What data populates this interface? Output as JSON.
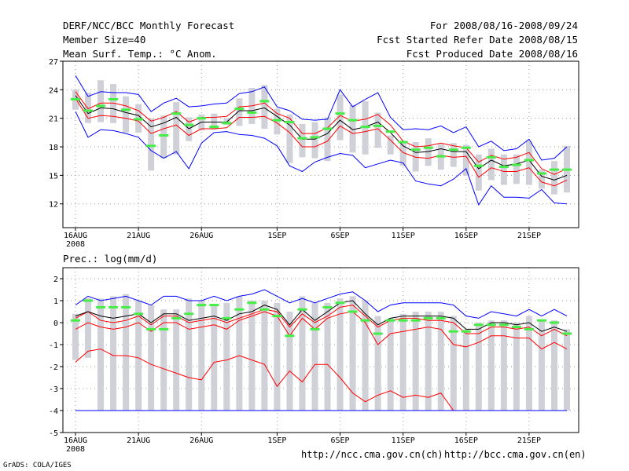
{
  "header": {
    "title": "DERF/NCC/BCC Monthly Forecast",
    "member_size": "Member Size=40",
    "variable": "Mean Surf. Temp.: °C Anom.",
    "period": "For 2008/08/16-2008/09/24",
    "started": "Fcst Started Refer Date 2008/08/15",
    "produced": "Fcst Produced Date 2008/08/16"
  },
  "footer": {
    "grads": "GrADS: COLA/IGES",
    "url_ncc": "http://ncc.cma.gov.cn(ch)",
    "url_bcc": "http://bcc.cma.gov.cn(en)"
  },
  "colors": {
    "mean": "#000000",
    "spread": "#ff0000",
    "envelope": "#0000ff",
    "box": "#d0d0d8",
    "marker": "#44ee44",
    "grid": "#9a9a9a"
  },
  "chart_data": [
    {
      "type": "line",
      "title": "Mean Surf. Temp.: °C Anom.",
      "xlabel": "",
      "ylabel": "°C",
      "ylim": [
        9.5,
        27
      ],
      "yticks": [
        12,
        15,
        18,
        21,
        24,
        27
      ],
      "x": [
        1,
        2,
        3,
        4,
        5,
        6,
        7,
        8,
        9,
        10,
        11,
        12,
        13,
        14,
        15,
        16,
        17,
        18,
        19,
        20,
        21,
        22,
        23,
        24,
        25,
        26,
        27,
        28,
        29,
        30,
        31,
        32,
        33,
        34,
        35,
        36,
        37,
        38,
        39,
        40
      ],
      "xticks": [
        {
          "day": 1,
          "label": "16AUG",
          "sub": "2008"
        },
        {
          "day": 6,
          "label": "21AUG",
          "sub": ""
        },
        {
          "day": 11,
          "label": "26AUG",
          "sub": ""
        },
        {
          "day": 17,
          "label": "1SEP",
          "sub": ""
        },
        {
          "day": 22,
          "label": "6SEP",
          "sub": ""
        },
        {
          "day": 27,
          "label": "11SEP",
          "sub": ""
        },
        {
          "day": 32,
          "label": "16SEP",
          "sub": ""
        },
        {
          "day": 37,
          "label": "21SEP",
          "sub": ""
        }
      ],
      "series": [
        {
          "name": "Ensemble max",
          "role": "envelope",
          "values": [
            25.5,
            23.3,
            23.8,
            23.7,
            23.7,
            23.5,
            21.7,
            22.6,
            23.1,
            22.2,
            22.3,
            22.5,
            22.6,
            23.6,
            23.8,
            24.3,
            22.2,
            21.8,
            20.9,
            20.8,
            20.9,
            24.0,
            22.2,
            23.0,
            23.7,
            21.1,
            19.8,
            19.9,
            19.8,
            20.2,
            19.5,
            20.1,
            18.0,
            18.6,
            17.6,
            17.8,
            18.8,
            16.6,
            16.8,
            18.0
          ]
        },
        {
          "name": "Upper spread",
          "role": "spread",
          "values": [
            23.8,
            22.0,
            22.6,
            22.6,
            22.3,
            21.8,
            20.7,
            21.1,
            21.7,
            20.6,
            21.1,
            21.1,
            21.2,
            22.2,
            22.3,
            22.6,
            21.5,
            21.0,
            19.4,
            19.4,
            20.0,
            21.3,
            20.7,
            20.9,
            21.4,
            20.3,
            18.6,
            18.0,
            18.1,
            18.4,
            18.1,
            17.9,
            16.4,
            17.1,
            16.7,
            16.9,
            17.4,
            15.7,
            15.1,
            15.7
          ]
        },
        {
          "name": "Ensemble mean",
          "role": "mean",
          "values": [
            23.4,
            21.5,
            22.1,
            22.0,
            21.6,
            21.3,
            20.1,
            20.5,
            21.1,
            19.9,
            20.6,
            20.6,
            20.6,
            21.8,
            21.8,
            22.1,
            21.2,
            20.3,
            18.8,
            18.8,
            19.4,
            20.8,
            19.8,
            20.1,
            20.6,
            19.5,
            18.1,
            17.4,
            17.5,
            17.8,
            17.5,
            17.5,
            15.7,
            16.6,
            16.0,
            16.2,
            16.6,
            14.9,
            14.5,
            15.0
          ]
        },
        {
          "name": "Lower spread",
          "role": "spread",
          "values": [
            23.1,
            21.0,
            21.3,
            21.2,
            21.0,
            20.7,
            19.4,
            19.9,
            20.3,
            19.2,
            19.9,
            19.9,
            20.0,
            21.1,
            21.1,
            21.2,
            20.5,
            19.5,
            18.0,
            18.0,
            18.6,
            20.2,
            19.4,
            19.6,
            19.9,
            18.7,
            17.4,
            16.9,
            16.8,
            17.1,
            16.9,
            17.0,
            14.8,
            15.8,
            15.4,
            15.4,
            15.8,
            14.3,
            13.9,
            14.5
          ]
        },
        {
          "name": "Ensemble min",
          "role": "envelope",
          "values": [
            21.7,
            19.0,
            19.8,
            19.7,
            19.4,
            19.0,
            17.6,
            16.8,
            17.5,
            15.7,
            18.4,
            19.5,
            19.6,
            19.3,
            19.2,
            18.9,
            18.1,
            16.0,
            15.4,
            16.4,
            16.9,
            17.3,
            17.1,
            15.8,
            16.2,
            16.6,
            16.3,
            14.4,
            14.1,
            13.9,
            14.6,
            15.7,
            11.9,
            13.9,
            12.7,
            12.7,
            12.6,
            13.5,
            12.1,
            12.0
          ]
        }
      ],
      "boxes": [
        {
          "lo": 21.9,
          "hi": 24.0
        },
        {
          "lo": 20.5,
          "hi": 23.7
        },
        {
          "lo": 20.6,
          "hi": 25.0
        },
        {
          "lo": 20.5,
          "hi": 24.6
        },
        {
          "lo": 19.5,
          "hi": 23.3
        },
        {
          "lo": 19.5,
          "hi": 22.5
        },
        {
          "lo": 15.5,
          "hi": 21.0
        },
        {
          "lo": 16.8,
          "hi": 21.3
        },
        {
          "lo": 17.2,
          "hi": 22.7
        },
        {
          "lo": 18.6,
          "hi": 21.1
        },
        {
          "lo": 19.7,
          "hi": 21.4
        },
        {
          "lo": 19.8,
          "hi": 21.5
        },
        {
          "lo": 20.3,
          "hi": 21.0
        },
        {
          "lo": 20.2,
          "hi": 23.1
        },
        {
          "lo": 20.4,
          "hi": 24.2
        },
        {
          "lo": 19.9,
          "hi": 24.5
        },
        {
          "lo": 19.3,
          "hi": 22.0
        },
        {
          "lo": 16.3,
          "hi": 21.4
        },
        {
          "lo": 16.9,
          "hi": 20.4
        },
        {
          "lo": 16.8,
          "hi": 20.6
        },
        {
          "lo": 16.5,
          "hi": 21.1
        },
        {
          "lo": 18.7,
          "hi": 23.5
        },
        {
          "lo": 17.4,
          "hi": 22.4
        },
        {
          "lo": 17.2,
          "hi": 22.8
        },
        {
          "lo": 17.9,
          "hi": 21.6
        },
        {
          "lo": 17.2,
          "hi": 19.2
        },
        {
          "lo": 16.0,
          "hi": 18.6
        },
        {
          "lo": 15.4,
          "hi": 18.5
        },
        {
          "lo": 16.0,
          "hi": 18.9
        },
        {
          "lo": 15.6,
          "hi": 18.3
        },
        {
          "lo": 15.9,
          "hi": 18.4
        },
        {
          "lo": 15.0,
          "hi": 18.2
        },
        {
          "lo": 13.4,
          "hi": 17.2
        },
        {
          "lo": 14.5,
          "hi": 17.8
        },
        {
          "lo": 14.0,
          "hi": 17.2
        },
        {
          "lo": 14.1,
          "hi": 17.2
        },
        {
          "lo": 14.0,
          "hi": 18.6
        },
        {
          "lo": 13.6,
          "hi": 15.6
        },
        {
          "lo": 13.0,
          "hi": 16.5
        },
        {
          "lo": 13.2,
          "hi": 18.1
        }
      ],
      "markers": [
        23.0,
        21.8,
        22.3,
        23.0,
        21.9,
        20.9,
        18.1,
        19.2,
        21.5,
        20.3,
        21.0,
        20.1,
        20.5,
        22.0,
        21.6,
        22.8,
        20.8,
        20.6,
        18.9,
        19.0,
        19.9,
        21.5,
        20.8,
        20.1,
        20.2,
        19.6,
        18.5,
        17.7,
        17.9,
        17.0,
        17.7,
        17.9,
        16.0,
        16.9,
        15.9,
        16.1,
        16.6,
        15.2,
        15.6,
        15.6
      ]
    },
    {
      "type": "line",
      "title": "Prec.: log(mm/d)",
      "xlabel": "",
      "ylabel": "log(mm/d)",
      "ylim": [
        -5,
        2.5
      ],
      "yticks": [
        -5,
        -4,
        -3,
        -2,
        -1,
        0,
        1,
        2
      ],
      "x": [
        1,
        2,
        3,
        4,
        5,
        6,
        7,
        8,
        9,
        10,
        11,
        12,
        13,
        14,
        15,
        16,
        17,
        18,
        19,
        20,
        21,
        22,
        23,
        24,
        25,
        26,
        27,
        28,
        29,
        30,
        31,
        32,
        33,
        34,
        35,
        36,
        37,
        38,
        39,
        40
      ],
      "xticks": [
        {
          "day": 1,
          "label": "16AUG",
          "sub": "2008"
        },
        {
          "day": 6,
          "label": "21AUG",
          "sub": ""
        },
        {
          "day": 11,
          "label": "26AUG",
          "sub": ""
        },
        {
          "day": 17,
          "label": "1SEP",
          "sub": ""
        },
        {
          "day": 22,
          "label": "6SEP",
          "sub": ""
        },
        {
          "day": 27,
          "label": "11SEP",
          "sub": ""
        },
        {
          "day": 32,
          "label": "16SEP",
          "sub": ""
        },
        {
          "day": 37,
          "label": "21SEP",
          "sub": ""
        }
      ],
      "series": [
        {
          "name": "Ensemble max",
          "role": "envelope",
          "values": [
            0.8,
            1.2,
            1.0,
            1.1,
            1.2,
            1.0,
            0.8,
            1.2,
            1.2,
            1.0,
            1.0,
            1.2,
            1.0,
            1.2,
            1.3,
            1.5,
            1.2,
            0.9,
            1.1,
            0.9,
            1.1,
            1.3,
            1.4,
            1.0,
            0.5,
            0.8,
            0.9,
            0.9,
            0.9,
            0.9,
            0.8,
            0.3,
            0.2,
            0.5,
            0.4,
            0.3,
            0.6,
            0.3,
            0.6,
            0.3
          ]
        },
        {
          "name": "Upper spread",
          "role": "spread",
          "values": [
            0.2,
            0.5,
            0.1,
            0.0,
            0.1,
            0.3,
            -0.1,
            0.3,
            0.3,
            0.0,
            0.1,
            0.2,
            0.0,
            0.2,
            0.4,
            0.6,
            0.5,
            -0.2,
            0.4,
            0.0,
            0.3,
            0.7,
            0.8,
            0.3,
            -0.2,
            0.1,
            0.2,
            0.2,
            0.1,
            0.1,
            0.0,
            -0.5,
            -0.5,
            -0.2,
            -0.2,
            -0.3,
            -0.2,
            -0.6,
            -0.3,
            -0.6
          ]
        },
        {
          "name": "Ensemble mean",
          "role": "mean",
          "values": [
            0.3,
            0.5,
            0.3,
            0.2,
            0.3,
            0.4,
            0.0,
            0.4,
            0.4,
            0.1,
            0.2,
            0.3,
            0.1,
            0.4,
            0.5,
            0.8,
            0.6,
            -0.1,
            0.6,
            0.1,
            0.5,
            0.9,
            1.0,
            0.4,
            -0.1,
            0.2,
            0.3,
            0.3,
            0.3,
            0.3,
            0.2,
            -0.3,
            -0.3,
            0.0,
            0.0,
            -0.1,
            0.0,
            -0.4,
            -0.2,
            -0.4
          ]
        },
        {
          "name": "Lower spread",
          "role": "spread",
          "values": [
            -0.3,
            0.0,
            -0.2,
            -0.3,
            -0.2,
            0.0,
            -0.4,
            0.0,
            0.0,
            -0.3,
            -0.2,
            -0.1,
            -0.3,
            0.1,
            0.3,
            0.5,
            0.3,
            -0.6,
            0.2,
            -0.3,
            0.2,
            0.4,
            0.5,
            0.0,
            -1.0,
            -0.5,
            -0.4,
            -0.3,
            -0.2,
            -0.3,
            -1.0,
            -1.1,
            -0.9,
            -0.6,
            -0.6,
            -0.7,
            -0.7,
            -1.2,
            -0.9,
            -1.2
          ]
        },
        {
          "name": "Lower quantile",
          "role": "spread",
          "values": [
            -1.8,
            -1.3,
            -1.2,
            -1.5,
            -1.5,
            -1.6,
            -1.9,
            -2.1,
            -2.3,
            -2.5,
            -2.6,
            -1.8,
            -1.7,
            -1.5,
            -1.7,
            -1.9,
            -2.9,
            -2.2,
            -2.7,
            -1.9,
            -1.9,
            -2.5,
            -3.2,
            -3.6,
            -3.3,
            -3.1,
            -3.4,
            -3.3,
            -3.4,
            -3.2,
            -4.0,
            -4.0,
            -4.0,
            -4.0,
            -4.0,
            -4.0,
            -4.0,
            -4.0,
            -4.0,
            -4.0
          ]
        },
        {
          "name": "Ensemble min",
          "role": "envelope",
          "values": [
            -4,
            -4,
            -4,
            -4,
            -4,
            -4,
            -4,
            -4,
            -4,
            -4,
            -4,
            -4,
            -4,
            -4,
            -4,
            -4,
            -4,
            -4,
            -4,
            -4,
            -4,
            -4,
            -4,
            -4,
            -4,
            -4,
            -4,
            -4,
            -4,
            -4,
            -4,
            -4,
            -4,
            -4,
            -4,
            -4,
            -4,
            -4,
            -4,
            -4
          ]
        }
      ],
      "boxes": [
        {
          "lo": -1.7,
          "hi": 0.4
        },
        {
          "lo": -1.6,
          "hi": 1.1
        },
        {
          "lo": -4.0,
          "hi": 1.1
        },
        {
          "lo": -4.0,
          "hi": 1.2
        },
        {
          "lo": -4.0,
          "hi": 1.3
        },
        {
          "lo": -4.0,
          "hi": 1.0
        },
        {
          "lo": -4.0,
          "hi": 0.8
        },
        {
          "lo": -4.0,
          "hi": 0.6
        },
        {
          "lo": -4.0,
          "hi": 0.6
        },
        {
          "lo": -4.0,
          "hi": 1.1
        },
        {
          "lo": -4.0,
          "hi": 1.0
        },
        {
          "lo": -4.0,
          "hi": 0.8
        },
        {
          "lo": -4.0,
          "hi": 0.9
        },
        {
          "lo": -4.0,
          "hi": 1.2
        },
        {
          "lo": -4.0,
          "hi": 1.0
        },
        {
          "lo": -4.0,
          "hi": 1.0
        },
        {
          "lo": -4.0,
          "hi": 0.9
        },
        {
          "lo": -4.0,
          "hi": 0.5
        },
        {
          "lo": -4.0,
          "hi": 1.2
        },
        {
          "lo": -4.0,
          "hi": 0.9
        },
        {
          "lo": -4.0,
          "hi": 0.9
        },
        {
          "lo": -4.0,
          "hi": 1.1
        },
        {
          "lo": -4.0,
          "hi": 1.2
        },
        {
          "lo": -4.0,
          "hi": 1.0
        },
        {
          "lo": -4.0,
          "hi": 0.3
        },
        {
          "lo": -4.0,
          "hi": 0.2
        },
        {
          "lo": -4.0,
          "hi": 0.4
        },
        {
          "lo": -4.0,
          "hi": 0.5
        },
        {
          "lo": -4.0,
          "hi": 0.5
        },
        {
          "lo": -4.0,
          "hi": 0.5
        },
        {
          "lo": -4.0,
          "hi": 0.3
        },
        {
          "lo": -4.0,
          "hi": -0.3
        },
        {
          "lo": -4.0,
          "hi": 0.0
        },
        {
          "lo": -4.0,
          "hi": 0.1
        },
        {
          "lo": -4.0,
          "hi": 0.1
        },
        {
          "lo": -4.0,
          "hi": 0.0
        },
        {
          "lo": -4.0,
          "hi": 0.3
        },
        {
          "lo": -4.0,
          "hi": 0.1
        },
        {
          "lo": -4.0,
          "hi": 0.1
        },
        {
          "lo": -4.0,
          "hi": -0.3
        }
      ],
      "markers": [
        0.1,
        1.0,
        0.7,
        0.7,
        0.7,
        0.4,
        -0.3,
        -0.3,
        0.2,
        0.4,
        0.8,
        0.8,
        0.2,
        0.6,
        0.9,
        0.6,
        0.3,
        -0.6,
        0.6,
        -0.3,
        0.7,
        0.9,
        0.5,
        0.1,
        -0.5,
        0.1,
        0.1,
        0.1,
        0.2,
        0.2,
        -0.4,
        -0.4,
        -0.1,
        -0.1,
        -0.1,
        -0.2,
        -0.3,
        0.1,
        0.0,
        -0.5
      ]
    }
  ]
}
